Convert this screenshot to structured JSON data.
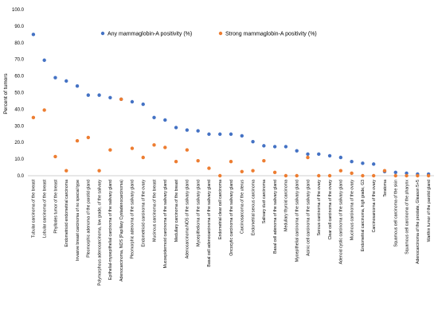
{
  "chart_data": {
    "type": "scatter",
    "ylabel": "Percent of tumors",
    "ylim": [
      0,
      100
    ],
    "yticks": [
      "0.0",
      "10.0",
      "20.0",
      "30.0",
      "40.0",
      "50.0",
      "60.0",
      "70.0",
      "80.0",
      "90.0",
      "100.0"
    ],
    "grid": false,
    "legend_position": "top",
    "categories": [
      "Tubular carcinoma of the breast",
      "Lobular carcinoma of the breast",
      "Phyllodes tumor of the breast",
      "Endometrioid endometrial carcinoma",
      "Invasive breast carcinoma of no special type",
      "Pleomorphic adenoma of the parotid gland",
      "Polymorphous adenocarcinoma, low grade, of the salivary",
      "Epithelial-myoepithelial carcinoma of the salivary gland",
      "Adenocarcinoma, NOS (Papillary Cystadenocarcinoma)",
      "Pleomorphic adenoma of the salivary gland",
      "Endometrioid carcinoma of the ovary",
      "Mucinous carcinoma of the breast",
      "Mucoepidermoid carcinoma of the salivary gland",
      "Medullary carcinoma of the breast",
      "Adenocarcinoma NOS of the salivary gland",
      "Myoepithelioma of the salivary gland",
      "Basal cell adenocarcinoma of the salivary gland",
      "Endometrial clear cell carcinoma",
      "Oncocytic carcinoma of the salivary gland",
      "Carcinosarcoma of the uterus",
      "Endometrial serous carcinoma",
      "Salivary duct carcinoma",
      "Basal cell adenoma of the salivary gland",
      "Medullary thyroid carcinoma",
      "Myoepithelial carcinoma of the salivary gland",
      "Acinic cell carcinoma of the salivary gland",
      "Serous carcinoma of the ovary",
      "Clear cell carcinoma of the ovary",
      "Adenoid cystic carcinoma of the salivary gland",
      "Mucinous carcinoma of the ovary",
      "Endometrial carcinoma, high grade, G3",
      "Carcinosarcoma of the ovary",
      "Teratoma",
      "Squamous cell carcinoma of the skin",
      "Squamous cell carcinoma of the pharynx",
      "Adenocarcinoma of the prostate, Gleason 5+5",
      "Warthin tumor of the parotid gland"
    ],
    "series": [
      {
        "name": "Any mammaglobin-A positivity (%)",
        "color": "#4472C4",
        "values": [
          85,
          69.5,
          59,
          57,
          54,
          48.5,
          48.5,
          47,
          46,
          44.5,
          43,
          35,
          33.5,
          29,
          27.5,
          27,
          25,
          25,
          25,
          24,
          20.5,
          18,
          17.5,
          17.5,
          15,
          13,
          13,
          12,
          11,
          8.5,
          7.5,
          7,
          2.5,
          2,
          1.5,
          1,
          1
        ]
      },
      {
        "name": "Strong mammaglobin-A positivity (%)",
        "color": "#ED7D31",
        "values": [
          35,
          39.5,
          11.5,
          3,
          21,
          23,
          3,
          15.5,
          46,
          16.5,
          11,
          18.5,
          17,
          8.5,
          15.5,
          9,
          4.5,
          0,
          8.5,
          2.5,
          3,
          9,
          2,
          0,
          0,
          11,
          0,
          0,
          3,
          1.5,
          0,
          0,
          3,
          0,
          0,
          0,
          0
        ]
      }
    ]
  }
}
